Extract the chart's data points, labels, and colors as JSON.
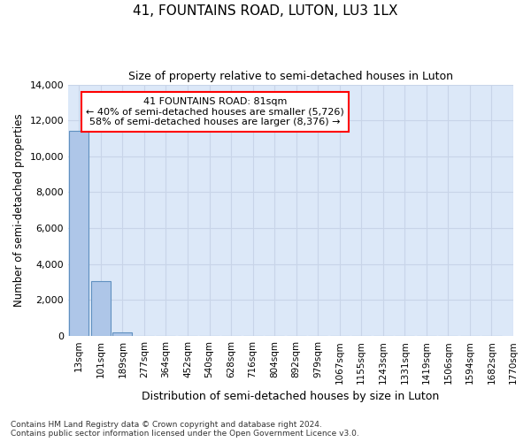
{
  "title": "41, FOUNTAINS ROAD, LUTON, LU3 1LX",
  "subtitle": "Size of property relative to semi-detached houses in Luton",
  "xlabel": "Distribution of semi-detached houses by size in Luton",
  "ylabel": "Number of semi-detached properties",
  "bar_values": [
    11400,
    3050,
    200,
    0,
    0,
    0,
    0,
    0,
    0,
    0,
    0,
    0,
    0,
    0,
    0,
    0,
    0,
    0,
    0,
    0
  ],
  "bar_labels": [
    "13sqm",
    "101sqm",
    "189sqm",
    "277sqm",
    "364sqm",
    "452sqm",
    "540sqm",
    "628sqm",
    "716sqm",
    "804sqm",
    "892sqm",
    "979sqm",
    "1067sqm",
    "1155sqm",
    "1243sqm",
    "1331sqm",
    "1419sqm",
    "1506sqm",
    "1594sqm",
    "1682sqm",
    "1770sqm"
  ],
  "bar_color": "#aec6e8",
  "bar_edge_color": "#6090c0",
  "annotation_text_line1": "41 FOUNTAINS ROAD: 81sqm",
  "annotation_text_line2": "← 40% of semi-detached houses are smaller (5,726)",
  "annotation_text_line3": "58% of semi-detached houses are larger (8,376) →",
  "ylim": [
    0,
    14000
  ],
  "yticks": [
    0,
    2000,
    4000,
    6000,
    8000,
    10000,
    12000,
    14000
  ],
  "grid_color": "#c8d4e8",
  "bg_color": "#dce8f8",
  "footnote1": "Contains HM Land Registry data © Crown copyright and database right 2024.",
  "footnote2": "Contains public sector information licensed under the Open Government Licence v3.0."
}
